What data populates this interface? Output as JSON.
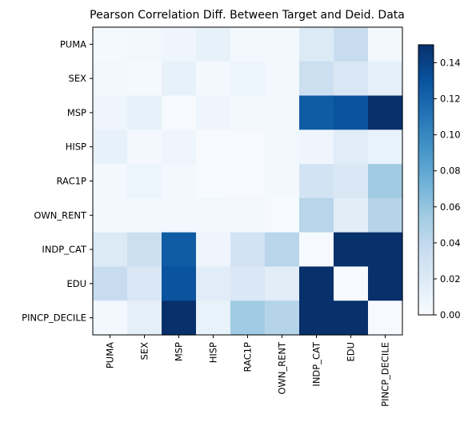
{
  "chart_data": {
    "type": "heatmap",
    "title": "Pearson Correlation Diff. Between Target and Deid. Data",
    "xlabel": "",
    "ylabel": "",
    "rows": [
      "PUMA",
      "SEX",
      "MSP",
      "HISP",
      "RAC1P",
      "OWN_RENT",
      "INDP_CAT",
      "EDU",
      "PINCP_DECILE"
    ],
    "cols": [
      "PUMA",
      "SEX",
      "MSP",
      "HISP",
      "RAC1P",
      "OWN_RENT",
      "INDP_CAT",
      "EDU",
      "PINCP_DECILE"
    ],
    "values": [
      [
        0.002,
        0.005,
        0.007,
        0.012,
        0.004,
        0.004,
        0.02,
        0.036,
        0.003
      ],
      [
        0.005,
        0.002,
        0.012,
        0.004,
        0.008,
        0.003,
        0.033,
        0.023,
        0.014
      ],
      [
        0.007,
        0.012,
        0.001,
        0.007,
        0.003,
        0.003,
        0.125,
        0.13,
        0.15
      ],
      [
        0.012,
        0.004,
        0.007,
        0.001,
        0.001,
        0.005,
        0.007,
        0.017,
        0.011
      ],
      [
        0.004,
        0.008,
        0.003,
        0.001,
        0.001,
        0.003,
        0.028,
        0.022,
        0.055
      ],
      [
        0.004,
        0.003,
        0.003,
        0.005,
        0.003,
        0.001,
        0.044,
        0.016,
        0.045
      ],
      [
        0.02,
        0.033,
        0.125,
        0.007,
        0.028,
        0.044,
        0.001,
        0.15,
        0.15
      ],
      [
        0.036,
        0.023,
        0.13,
        0.017,
        0.022,
        0.016,
        0.15,
        0.001,
        0.15
      ],
      [
        0.003,
        0.014,
        0.15,
        0.011,
        0.055,
        0.045,
        0.15,
        0.15,
        0.001
      ]
    ],
    "vmin": 0.0,
    "vmax": 0.15,
    "colormap": "Blues",
    "colorbar_ticks": [
      "0.00",
      "0.02",
      "0.04",
      "0.06",
      "0.08",
      "0.10",
      "0.12",
      "0.14"
    ],
    "colorbar_tick_values": [
      0.0,
      0.02,
      0.04,
      0.06,
      0.08,
      0.1,
      0.12,
      0.14
    ],
    "grid": false
  }
}
